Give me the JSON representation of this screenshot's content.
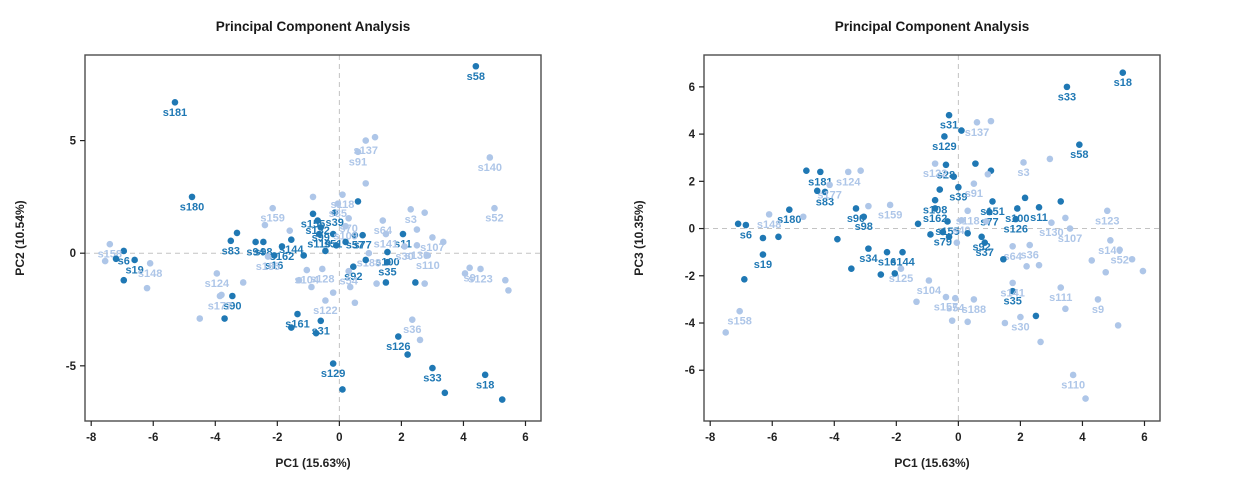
{
  "page": {
    "background": "#ffffff"
  },
  "colors": {
    "dark_point": "#1f78b4",
    "light_point": "#aec6e8",
    "title_text": "#1a1a1a",
    "axis_text": "#222222",
    "axis_box": "#4d4d4d",
    "grid_dash": "#c3c3c3"
  },
  "chart_data": [
    {
      "id": "pca-pc1-pc2",
      "type": "scatter",
      "title": "Principal Component Analysis",
      "xlabel": "PC1 (15.63%)",
      "ylabel": "PC2 (10.54%)",
      "xlim": [
        -8.2,
        6.5
      ],
      "ylim": [
        -7.45,
        8.8
      ],
      "xticks": [
        -8,
        -6,
        -4,
        -2,
        0,
        2,
        4,
        6
      ],
      "yticks": [
        -5,
        0,
        5
      ],
      "grid": "dashed crosshair at x=0 and y=0",
      "legend": "none",
      "series": [
        {
          "name": "dark-group",
          "color": "#1f78b4"
        },
        {
          "name": "light-group",
          "color": "#aec6e8"
        }
      ],
      "points": [
        [
          4.4,
          8.3,
          "d",
          "s58"
        ],
        [
          -5.3,
          6.7,
          "d",
          "s181"
        ],
        [
          -4.75,
          2.5,
          "d",
          "s180"
        ],
        [
          -0.85,
          1.75,
          "d",
          "s155"
        ],
        [
          -0.7,
          1.45,
          "d",
          "s132"
        ],
        [
          -0.6,
          1.15,
          "d",
          "s99"
        ],
        [
          -0.15,
          1.8,
          "d",
          "s39"
        ],
        [
          -0.65,
          0.85,
          "d",
          "s119"
        ],
        [
          -0.2,
          0.85,
          "d",
          "s51"
        ],
        [
          0.5,
          0.8,
          "d",
          "s57"
        ],
        [
          0.75,
          0.8,
          "d",
          "s77"
        ],
        [
          2.05,
          0.85,
          "d",
          "s11"
        ],
        [
          -1.55,
          0.6,
          "d",
          "s144"
        ],
        [
          -1.85,
          0.3,
          "d",
          "s162"
        ],
        [
          -2.1,
          -0.1,
          "d",
          "s16"
        ],
        [
          -3.5,
          0.55,
          "d",
          "s83"
        ],
        [
          -2.7,
          0.5,
          "d",
          "s94"
        ],
        [
          -2.45,
          0.5,
          "d",
          "s98"
        ],
        [
          1.55,
          0.05,
          "d",
          "s100"
        ],
        [
          1.55,
          -0.4,
          "d",
          "s35"
        ],
        [
          0.45,
          -0.6,
          "d",
          "s92"
        ],
        [
          -6.95,
          0.1,
          "d",
          "s6"
        ],
        [
          -6.6,
          -0.3,
          "d",
          "s19"
        ],
        [
          -3.45,
          -1.9,
          "d",
          "s90"
        ],
        [
          -1.35,
          -2.7,
          "d",
          "s161"
        ],
        [
          -0.6,
          -3.0,
          "d",
          "s31"
        ],
        [
          -0.2,
          -4.9,
          "d",
          "s129"
        ],
        [
          1.9,
          -3.7,
          "d",
          "s126"
        ],
        [
          3.0,
          -5.1,
          "d",
          "s33"
        ],
        [
          4.7,
          -5.4,
          "d",
          "s18"
        ],
        [
          0.85,
          5.0,
          "l",
          "s137"
        ],
        [
          0.6,
          4.5,
          "l",
          "s91"
        ],
        [
          4.85,
          4.25,
          "l",
          "s140"
        ],
        [
          5.0,
          2.0,
          "l",
          "s52"
        ],
        [
          2.3,
          1.95,
          "l",
          "s3"
        ],
        [
          0.1,
          2.6,
          "l",
          "s118"
        ],
        [
          -0.05,
          2.2,
          "l",
          "s85"
        ],
        [
          -2.15,
          2.0,
          "l",
          "s159"
        ],
        [
          0.3,
          1.55,
          "l",
          "s70"
        ],
        [
          0.2,
          1.2,
          "l",
          "s109"
        ],
        [
          1.4,
          1.45,
          "l",
          "s64"
        ],
        [
          1.5,
          0.85,
          "l",
          "s141"
        ],
        [
          3.0,
          0.7,
          "l",
          "s107"
        ],
        [
          2.5,
          0.35,
          "l",
          "s130"
        ],
        [
          2.1,
          0.3,
          "l",
          "s30"
        ],
        [
          0.95,
          0.0,
          "l",
          "s188"
        ],
        [
          2.85,
          -0.1,
          "l",
          "s110"
        ],
        [
          0.3,
          -0.8,
          "l",
          "s54"
        ],
        [
          -0.55,
          -0.7,
          "l",
          "s128"
        ],
        [
          -1.05,
          -0.75,
          "l",
          "s104"
        ],
        [
          -2.3,
          -0.15,
          "l",
          "s185"
        ],
        [
          -7.4,
          0.4,
          "l",
          "s158"
        ],
        [
          -6.1,
          -0.45,
          "l",
          "s148"
        ],
        [
          -3.95,
          -0.9,
          "l",
          "s124"
        ],
        [
          -3.85,
          -1.9,
          "l",
          "s177"
        ],
        [
          -0.45,
          -2.1,
          "l",
          "s122"
        ],
        [
          2.35,
          -2.95,
          "l",
          "s36"
        ],
        [
          4.2,
          -0.65,
          "l",
          "s9"
        ],
        [
          4.55,
          -0.7,
          "l",
          "s123"
        ],
        [
          -7.2,
          -0.25,
          "d",
          ""
        ],
        [
          -6.95,
          -1.2,
          "d",
          ""
        ],
        [
          -3.7,
          -2.9,
          "d",
          ""
        ],
        [
          -1.55,
          -3.3,
          "d",
          ""
        ],
        [
          -0.75,
          -3.55,
          "d",
          ""
        ],
        [
          0.1,
          -6.05,
          "d",
          ""
        ],
        [
          2.2,
          -4.5,
          "d",
          ""
        ],
        [
          3.4,
          -6.2,
          "d",
          ""
        ],
        [
          5.25,
          -6.5,
          "d",
          ""
        ],
        [
          1.5,
          -1.3,
          "d",
          ""
        ],
        [
          2.45,
          -1.3,
          "d",
          ""
        ],
        [
          0.85,
          -0.3,
          "d",
          ""
        ],
        [
          -3.3,
          0.9,
          "d",
          ""
        ],
        [
          -0.1,
          0.35,
          "d",
          ""
        ],
        [
          0.2,
          0.5,
          "d",
          ""
        ],
        [
          -1.15,
          -0.1,
          "d",
          ""
        ],
        [
          -0.45,
          0.1,
          "d",
          ""
        ],
        [
          0.6,
          2.3,
          "d",
          ""
        ],
        [
          -7.55,
          -0.35,
          "l",
          ""
        ],
        [
          -6.2,
          -1.55,
          "l",
          ""
        ],
        [
          -4.5,
          -2.9,
          "l",
          ""
        ],
        [
          -3.8,
          -1.85,
          "l",
          ""
        ],
        [
          -3.1,
          -1.3,
          "l",
          ""
        ],
        [
          1.15,
          5.15,
          "l",
          ""
        ],
        [
          0.85,
          3.1,
          "l",
          ""
        ],
        [
          2.75,
          1.8,
          "l",
          ""
        ],
        [
          2.5,
          1.05,
          "l",
          ""
        ],
        [
          3.35,
          0.5,
          "l",
          ""
        ],
        [
          -0.9,
          -1.5,
          "l",
          ""
        ],
        [
          -0.2,
          -1.75,
          "l",
          ""
        ],
        [
          0.35,
          -1.5,
          "l",
          ""
        ],
        [
          1.2,
          -1.35,
          "l",
          ""
        ],
        [
          2.75,
          -1.35,
          "l",
          ""
        ],
        [
          2.6,
          -3.85,
          "l",
          ""
        ],
        [
          4.05,
          -0.9,
          "l",
          ""
        ],
        [
          5.35,
          -1.2,
          "l",
          ""
        ],
        [
          5.45,
          -1.65,
          "l",
          ""
        ],
        [
          -1.6,
          1.0,
          "l",
          ""
        ],
        [
          -2.4,
          1.25,
          "l",
          ""
        ],
        [
          -0.85,
          2.5,
          "l",
          ""
        ],
        [
          0.5,
          -2.2,
          "l",
          ""
        ],
        [
          -1.3,
          -1.2,
          "l",
          ""
        ]
      ]
    },
    {
      "id": "pca-pc1-pc3",
      "type": "scatter",
      "title": "Principal Component Analysis",
      "xlabel": "PC1 (15.63%)",
      "ylabel": "PC3 (10.35%)",
      "xlim": [
        -8.2,
        6.5
      ],
      "ylim": [
        -8.15,
        7.35
      ],
      "xticks": [
        -8,
        -6,
        -4,
        -2,
        0,
        2,
        4,
        6
      ],
      "yticks": [
        -6,
        -4,
        -2,
        0,
        2,
        4,
        6
      ],
      "grid": "dashed crosshair at x=0 and y=0",
      "legend": "none",
      "series": [
        {
          "name": "dark-group",
          "color": "#1f78b4"
        },
        {
          "name": "light-group",
          "color": "#aec6e8"
        }
      ],
      "points": [
        [
          5.3,
          6.6,
          "d",
          "s18"
        ],
        [
          3.5,
          6.0,
          "d",
          "s33"
        ],
        [
          -0.3,
          4.8,
          "d",
          "s31"
        ],
        [
          -0.45,
          3.9,
          "d",
          "s129"
        ],
        [
          3.9,
          3.55,
          "d",
          "s58"
        ],
        [
          -4.45,
          2.4,
          "d",
          "s181"
        ],
        [
          -4.3,
          1.55,
          "d",
          "s83"
        ],
        [
          -0.4,
          2.7,
          "d",
          "s28"
        ],
        [
          0.0,
          1.75,
          "d",
          "s39"
        ],
        [
          -0.75,
          1.2,
          "d",
          "s108"
        ],
        [
          -0.75,
          0.85,
          "d",
          "s162"
        ],
        [
          1.1,
          1.15,
          "d",
          "s151"
        ],
        [
          1.0,
          0.7,
          "d",
          "s77"
        ],
        [
          1.9,
          0.85,
          "d",
          "s100"
        ],
        [
          2.6,
          0.9,
          "d",
          "s11"
        ],
        [
          1.85,
          0.4,
          "d",
          "s126"
        ],
        [
          -5.45,
          0.8,
          "d",
          "s180"
        ],
        [
          -3.3,
          0.85,
          "d",
          "s90"
        ],
        [
          -3.05,
          0.5,
          "d",
          "s98"
        ],
        [
          -6.85,
          0.15,
          "d",
          "s6"
        ],
        [
          -2.9,
          -0.85,
          "d",
          "s34"
        ],
        [
          -2.3,
          -1.0,
          "d",
          "s16"
        ],
        [
          -1.8,
          -1.0,
          "d",
          "s144"
        ],
        [
          -6.3,
          -1.1,
          "d",
          "s19"
        ],
        [
          1.75,
          -2.65,
          "d",
          "s35"
        ],
        [
          -0.5,
          -0.15,
          "d",
          "s79"
        ],
        [
          0.75,
          -0.35,
          "d",
          "s92"
        ],
        [
          0.85,
          -0.6,
          "d",
          "s37"
        ],
        [
          -0.35,
          0.3,
          "d",
          "s155"
        ],
        [
          0.6,
          4.5,
          "l",
          "s137"
        ],
        [
          -0.75,
          2.75,
          "l",
          "s122"
        ],
        [
          2.1,
          2.8,
          "l",
          "s3"
        ],
        [
          -3.55,
          2.4,
          "l",
          "s124"
        ],
        [
          -4.15,
          1.85,
          "l",
          "s177"
        ],
        [
          0.5,
          1.9,
          "l",
          "s91"
        ],
        [
          0.3,
          0.75,
          "l",
          "s118"
        ],
        [
          0.1,
          0.35,
          "l",
          "s40"
        ],
        [
          -6.1,
          0.6,
          "l",
          "s148"
        ],
        [
          -2.2,
          1.0,
          "l",
          "s159"
        ],
        [
          4.8,
          0.75,
          "l",
          "s123"
        ],
        [
          3.0,
          0.25,
          "l",
          "s130"
        ],
        [
          3.6,
          0.0,
          "l",
          "s107"
        ],
        [
          2.3,
          -0.7,
          "l",
          "s36"
        ],
        [
          1.75,
          -0.75,
          "l",
          "s64"
        ],
        [
          4.9,
          -0.5,
          "l",
          "s140"
        ],
        [
          5.2,
          -0.9,
          "l",
          "s52"
        ],
        [
          -1.85,
          -1.7,
          "l",
          "s125"
        ],
        [
          -0.95,
          -2.2,
          "l",
          "s104"
        ],
        [
          -0.4,
          -2.9,
          "l",
          "s157"
        ],
        [
          -0.1,
          -2.95,
          "l",
          "s54"
        ],
        [
          0.5,
          -3.0,
          "l",
          "s188"
        ],
        [
          1.75,
          -2.3,
          "l",
          "s141"
        ],
        [
          3.3,
          -2.5,
          "l",
          "s111"
        ],
        [
          4.5,
          -3.0,
          "l",
          "s9"
        ],
        [
          2.0,
          -3.75,
          "l",
          "s30"
        ],
        [
          -7.05,
          -3.5,
          "l",
          "s158"
        ],
        [
          3.7,
          -6.2,
          "l",
          "s110"
        ],
        [
          -4.9,
          2.45,
          "d",
          ""
        ],
        [
          -4.55,
          1.6,
          "d",
          ""
        ],
        [
          0.1,
          4.15,
          "d",
          ""
        ],
        [
          -0.6,
          1.65,
          "d",
          ""
        ],
        [
          -3.45,
          -1.7,
          "d",
          ""
        ],
        [
          -2.5,
          -1.95,
          "d",
          ""
        ],
        [
          -2.05,
          -1.9,
          "d",
          ""
        ],
        [
          -6.9,
          -2.15,
          "d",
          ""
        ],
        [
          2.5,
          -3.7,
          "d",
          ""
        ],
        [
          -6.3,
          -0.4,
          "d",
          ""
        ],
        [
          -1.3,
          0.2,
          "d",
          ""
        ],
        [
          -0.9,
          -0.25,
          "d",
          ""
        ],
        [
          -0.3,
          -0.35,
          "d",
          ""
        ],
        [
          0.3,
          -0.2,
          "d",
          ""
        ],
        [
          1.05,
          2.45,
          "d",
          ""
        ],
        [
          0.55,
          2.75,
          "d",
          ""
        ],
        [
          -0.15,
          2.2,
          "d",
          ""
        ],
        [
          2.15,
          1.3,
          "d",
          ""
        ],
        [
          3.3,
          1.15,
          "d",
          ""
        ],
        [
          1.45,
          -1.3,
          "d",
          ""
        ],
        [
          -7.1,
          0.2,
          "d",
          ""
        ],
        [
          -5.8,
          -0.35,
          "d",
          ""
        ],
        [
          -3.9,
          -0.45,
          "d",
          ""
        ],
        [
          -7.5,
          -4.4,
          "l",
          ""
        ],
        [
          4.1,
          -7.2,
          "l",
          ""
        ],
        [
          1.05,
          4.55,
          "l",
          ""
        ],
        [
          2.95,
          2.95,
          "l",
          ""
        ],
        [
          0.95,
          2.3,
          "l",
          ""
        ],
        [
          -2.9,
          0.95,
          "l",
          ""
        ],
        [
          -5.0,
          0.5,
          "l",
          ""
        ],
        [
          -3.15,
          2.45,
          "l",
          ""
        ],
        [
          2.2,
          -1.6,
          "l",
          ""
        ],
        [
          2.6,
          -1.55,
          "l",
          ""
        ],
        [
          -0.2,
          -3.9,
          "l",
          ""
        ],
        [
          0.3,
          -3.95,
          "l",
          ""
        ],
        [
          1.5,
          -4.0,
          "l",
          ""
        ],
        [
          2.65,
          -4.8,
          "l",
          ""
        ],
        [
          3.45,
          -3.4,
          "l",
          ""
        ],
        [
          5.15,
          -4.1,
          "l",
          ""
        ],
        [
          5.95,
          -1.8,
          "l",
          ""
        ],
        [
          5.6,
          -1.3,
          "l",
          ""
        ],
        [
          4.3,
          -1.35,
          "l",
          ""
        ],
        [
          4.75,
          -1.85,
          "l",
          ""
        ],
        [
          -1.35,
          -3.1,
          "l",
          ""
        ],
        [
          0.9,
          0.3,
          "l",
          ""
        ],
        [
          -0.05,
          -0.6,
          "l",
          ""
        ],
        [
          3.45,
          0.45,
          "l",
          ""
        ]
      ]
    }
  ]
}
